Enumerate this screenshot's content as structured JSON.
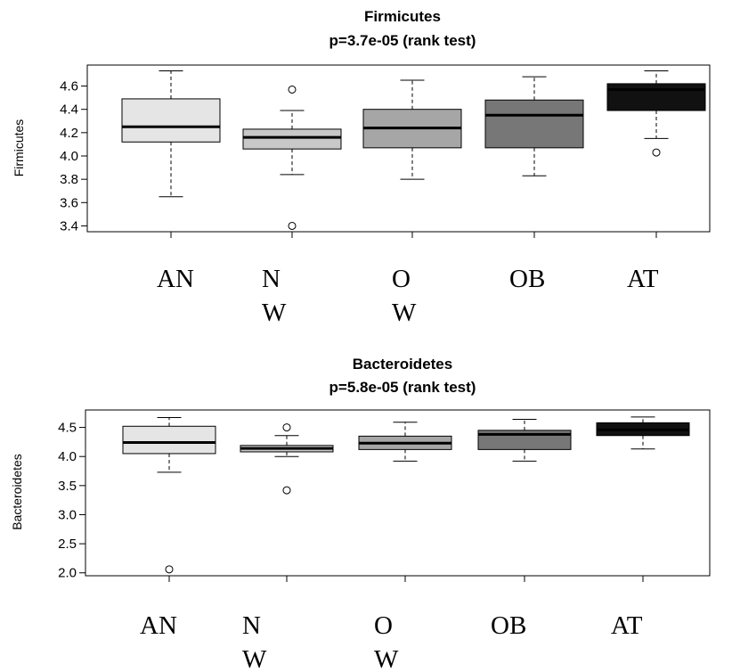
{
  "chart_data": [
    {
      "type": "boxplot",
      "title": "Firmicutes",
      "subtitle": "p=3.7e-05 (rank test)",
      "ylabel": "Firmicutes",
      "ylim": [
        3.35,
        4.78
      ],
      "yticks": [
        "3.4",
        "3.6",
        "3.8",
        "4.0",
        "4.2",
        "4.4",
        "4.6"
      ],
      "categories": [
        [
          "AN"
        ],
        [
          "N",
          "W"
        ],
        [
          "O",
          "W"
        ],
        [
          "OB"
        ],
        [
          "AT"
        ]
      ],
      "boxes": [
        {
          "whisker_low": 3.65,
          "q1": 4.12,
          "median": 4.25,
          "q3": 4.49,
          "whisker_high": 4.73,
          "outliers": [],
          "fill": "#e5e5e5"
        },
        {
          "whisker_low": 3.84,
          "q1": 4.06,
          "median": 4.16,
          "q3": 4.23,
          "whisker_high": 4.39,
          "outliers": [
            4.57,
            3.4
          ],
          "fill": "#c8c8c8"
        },
        {
          "whisker_low": 3.8,
          "q1": 4.07,
          "median": 4.24,
          "q3": 4.4,
          "whisker_high": 4.65,
          "outliers": [],
          "fill": "#a6a6a6"
        },
        {
          "whisker_low": 3.83,
          "q1": 4.07,
          "median": 4.35,
          "q3": 4.48,
          "whisker_high": 4.68,
          "outliers": [],
          "fill": "#777777"
        },
        {
          "whisker_low": 4.15,
          "q1": 4.39,
          "median": 4.57,
          "q3": 4.62,
          "whisker_high": 4.73,
          "outliers": [
            4.03
          ],
          "fill": "#111111"
        }
      ]
    },
    {
      "type": "boxplot",
      "title": "Bacteroidetes",
      "subtitle": "p=5.8e-05 (rank test)",
      "ylabel": "Bacteroidetes",
      "ylim": [
        1.95,
        4.8
      ],
      "yticks": [
        "2.0",
        "2.5",
        "3.0",
        "3.5",
        "4.0",
        "4.5"
      ],
      "categories": [
        [
          "AN"
        ],
        [
          "N",
          "W"
        ],
        [
          "O",
          "W"
        ],
        [
          "OB"
        ],
        [
          "AT"
        ]
      ],
      "boxes": [
        {
          "whisker_low": 3.73,
          "q1": 4.05,
          "median": 4.24,
          "q3": 4.52,
          "whisker_high": 4.67,
          "outliers": [
            2.06
          ],
          "fill": "#e5e5e5"
        },
        {
          "whisker_low": 4.0,
          "q1": 4.08,
          "median": 4.14,
          "q3": 4.19,
          "whisker_high": 4.36,
          "outliers": [
            4.5,
            3.42
          ],
          "fill": "#c8c8c8"
        },
        {
          "whisker_low": 3.92,
          "q1": 4.12,
          "median": 4.23,
          "q3": 4.35,
          "whisker_high": 4.59,
          "outliers": [],
          "fill": "#a6a6a6"
        },
        {
          "whisker_low": 3.92,
          "q1": 4.12,
          "median": 4.38,
          "q3": 4.45,
          "whisker_high": 4.64,
          "outliers": [],
          "fill": "#777777"
        },
        {
          "whisker_low": 4.13,
          "q1": 4.36,
          "median": 4.46,
          "q3": 4.58,
          "whisker_high": 4.68,
          "outliers": [],
          "fill": "#111111"
        }
      ]
    }
  ]
}
